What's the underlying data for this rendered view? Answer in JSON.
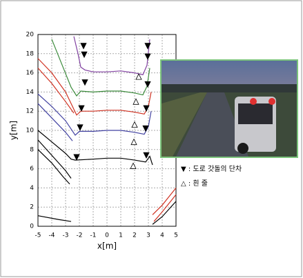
{
  "chart_data": {
    "type": "line",
    "xlabel": "x[m]",
    "ylabel": "y[m]",
    "xlim": [
      -5,
      5
    ],
    "ylim": [
      0,
      20
    ],
    "xticks": [
      -5,
      -4,
      -3,
      -2,
      -1,
      0,
      1,
      2,
      3,
      4,
      5
    ],
    "yticks": [
      0,
      2,
      4,
      6,
      8,
      10,
      12,
      14,
      16,
      18,
      20
    ],
    "grid": true,
    "series": [
      {
        "color": "#000000",
        "x": [
          -5,
          -4,
          -3,
          -2.6,
          -2.3,
          -1,
          0,
          1,
          2,
          2.8,
          3.1,
          3.3
        ],
        "y": [
          10,
          8.8,
          7.6,
          7.0,
          6.9,
          7.0,
          7.1,
          7.1,
          6.9,
          6.7,
          7.3,
          6.4
        ]
      },
      {
        "color": "#000000",
        "x": [
          -5,
          -4,
          -3,
          -2.6
        ],
        "y": [
          9,
          7.4,
          5.8,
          5.0
        ]
      },
      {
        "color": "#000000",
        "x": [
          -5,
          -4,
          -3.2,
          -2.7
        ],
        "y": [
          8,
          6.6,
          5.2,
          4.4
        ]
      },
      {
        "color": "#000000",
        "x": [
          -5,
          -3.5,
          -2.6
        ],
        "y": [
          1.1,
          0.7,
          0.5
        ]
      },
      {
        "color": "#4040a0",
        "x": [
          -5,
          -4,
          -3,
          -2.3,
          -2,
          -1,
          0,
          1,
          2,
          2.7,
          3.0,
          3.2
        ],
        "y": [
          13.8,
          12.5,
          11.0,
          9.5,
          9.9,
          9.9,
          10.0,
          10.0,
          9.8,
          9.6,
          10.4,
          12.0
        ]
      },
      {
        "color": "#4040a0",
        "x": [
          -5,
          -4,
          -3,
          -2.5
        ],
        "y": [
          12.8,
          11.3,
          9.8,
          8.9
        ]
      },
      {
        "color": "#d03020",
        "x": [
          -5,
          -4,
          -3,
          -2.2,
          -1.9,
          -1,
          0,
          1,
          2,
          2.7,
          3.0,
          3.2
        ],
        "y": [
          17.5,
          16.0,
          14.0,
          11.6,
          12.0,
          12.0,
          12.1,
          12.1,
          11.9,
          11.7,
          12.5,
          14.0
        ]
      },
      {
        "color": "#d03020",
        "x": [
          -5,
          -4,
          -3,
          -2.4
        ],
        "y": [
          16.5,
          14.9,
          13.0,
          11.8
        ]
      },
      {
        "color": "#d03020",
        "x": [
          3.4,
          4,
          4.5,
          5
        ],
        "y": [
          0.5,
          1.5,
          2.4,
          3.3
        ]
      },
      {
        "color": "#d03020",
        "x": [
          3.3,
          4,
          4.5,
          5
        ],
        "y": [
          1.2,
          2.2,
          3.1,
          4.0
        ]
      },
      {
        "color": "#000000",
        "x": [
          3.3,
          4,
          4.5,
          5
        ],
        "y": [
          0.2,
          1.0,
          1.8,
          2.6
        ]
      },
      {
        "color": "#3a8a3a",
        "x": [
          -4,
          -3.3,
          -2.6,
          -2.2,
          -1.9,
          -1,
          0,
          1,
          2,
          2.6,
          2.9,
          3.1
        ],
        "y": [
          19.5,
          17.0,
          14.5,
          13.6,
          14.1,
          14.0,
          14.1,
          14.1,
          13.9,
          13.7,
          14.6,
          16.5
        ]
      },
      {
        "color": "#8040a0",
        "x": [
          -2.4,
          -2.1,
          -1.9,
          -1.6,
          -1,
          0,
          1,
          2,
          2.6,
          2.9,
          3.1
        ],
        "y": [
          19.8,
          18.0,
          16.6,
          16.3,
          16.1,
          16.1,
          16.2,
          16.0,
          15.8,
          16.8,
          19.5
        ]
      }
    ],
    "markers": [
      {
        "name": "▼ : 도로 갓돌의 단차",
        "symbol": "down",
        "x": [
          -1.7,
          2.95,
          -1.65,
          2.95,
          -1.6,
          2.95,
          -1.85,
          2.85,
          -1.95,
          2.8,
          -2.2,
          2.85
        ],
        "y": [
          18.8,
          18.8,
          17.9,
          17.7,
          15.0,
          14.8,
          12.3,
          12.3,
          10.3,
          10.2,
          7.2,
          7.4
        ]
      },
      {
        "name": "△ : 흰 줄",
        "symbol": "up",
        "x": [
          2.3,
          2.1,
          2.0,
          1.95,
          1.9
        ],
        "y": [
          15.6,
          13.0,
          10.6,
          8.8,
          6.3
        ]
      }
    ]
  }
}
